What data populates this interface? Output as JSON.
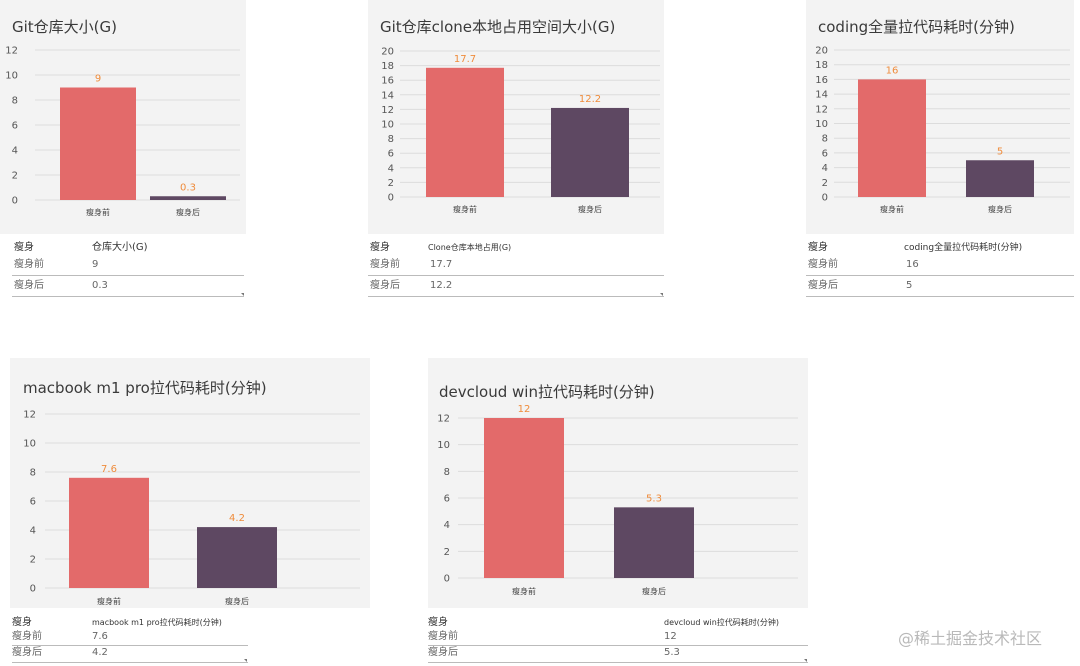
{
  "panels": [
    {
      "id": "git-repo-size",
      "chart_data": {
        "type": "bar",
        "title": "Git仓库大小(G)",
        "categories": [
          "瘦身前",
          "瘦身后"
        ],
        "values": [
          9,
          0.3
        ],
        "value_labels": [
          "9",
          "0.3"
        ],
        "ylim": [
          0,
          12
        ],
        "yticks": [
          0,
          2,
          4,
          6,
          8,
          10,
          12
        ],
        "grid": true,
        "colors": [
          "#e36a6a",
          "#5e4862"
        ]
      },
      "table": {
        "headers": [
          "瘦身",
          "仓库大小(G)"
        ],
        "rows": [
          [
            "瘦身前",
            "9"
          ],
          [
            "瘦身后",
            "0.3"
          ]
        ]
      }
    },
    {
      "id": "git-clone-local-size",
      "chart_data": {
        "type": "bar",
        "title": "Git仓库clone本地占用空间大小(G)",
        "categories": [
          "瘦身前",
          "瘦身后"
        ],
        "values": [
          17.7,
          12.2
        ],
        "value_labels": [
          "17.7",
          "12.2"
        ],
        "ylim": [
          0,
          20
        ],
        "yticks": [
          0,
          2,
          4,
          6,
          8,
          10,
          12,
          14,
          16,
          18,
          20
        ],
        "grid": true,
        "colors": [
          "#e36a6a",
          "#5e4862"
        ]
      },
      "table": {
        "headers": [
          "瘦身",
          "Clone仓库本地占用(G)"
        ],
        "rows": [
          [
            "瘦身前",
            "17.7"
          ],
          [
            "瘦身后",
            "12.2"
          ]
        ]
      }
    },
    {
      "id": "coding-full-pull-time",
      "chart_data": {
        "type": "bar",
        "title": "coding全量拉代码耗时(分钟)",
        "categories": [
          "瘦身前",
          "瘦身后"
        ],
        "values": [
          16,
          5
        ],
        "value_labels": [
          "16",
          "5"
        ],
        "ylim": [
          0,
          20
        ],
        "yticks": [
          0,
          2,
          4,
          6,
          8,
          10,
          12,
          14,
          16,
          18,
          20
        ],
        "grid": true,
        "colors": [
          "#e36a6a",
          "#5e4862"
        ]
      },
      "table": {
        "headers": [
          "瘦身",
          "coding全量拉代码耗时(分钟)"
        ],
        "rows": [
          [
            "瘦身前",
            "16"
          ],
          [
            "瘦身后",
            "5"
          ]
        ]
      }
    },
    {
      "id": "macbook-m1-pull-time",
      "chart_data": {
        "type": "bar",
        "title": "macbook m1 pro拉代码耗时(分钟)",
        "categories": [
          "瘦身前",
          "瘦身后"
        ],
        "values": [
          7.6,
          4.2
        ],
        "value_labels": [
          "7.6",
          "4.2"
        ],
        "ylim": [
          0,
          12
        ],
        "yticks": [
          0,
          2,
          4,
          6,
          8,
          10,
          12
        ],
        "grid": true,
        "colors": [
          "#e36a6a",
          "#5e4862"
        ]
      },
      "table": {
        "headers": [
          "瘦身",
          "macbook m1 pro拉代码耗时(分钟)"
        ],
        "rows": [
          [
            "瘦身前",
            "7.6"
          ],
          [
            "瘦身后",
            "4.2"
          ]
        ]
      }
    },
    {
      "id": "devcloud-win-pull-time",
      "chart_data": {
        "type": "bar",
        "title": "devcloud win拉代码耗时(分钟)",
        "categories": [
          "瘦身前",
          "瘦身后"
        ],
        "values": [
          12,
          5.3
        ],
        "value_labels": [
          "12",
          "5.3"
        ],
        "ylim": [
          0,
          12
        ],
        "yticks": [
          0,
          2,
          4,
          6,
          8,
          10,
          12
        ],
        "grid": true,
        "colors": [
          "#e36a6a",
          "#5e4862"
        ]
      },
      "table": {
        "headers": [
          "瘦身",
          "devcloud win拉代码耗时(分钟)"
        ],
        "rows": [
          [
            "瘦身前",
            "12"
          ],
          [
            "瘦身后",
            "5.3"
          ]
        ]
      }
    }
  ],
  "watermark": "@稀土掘金技术社区",
  "theme": {
    "label_color": "#ef8c3c",
    "grid_color": "#dcdcdc",
    "axis_text_color": "#555555"
  }
}
